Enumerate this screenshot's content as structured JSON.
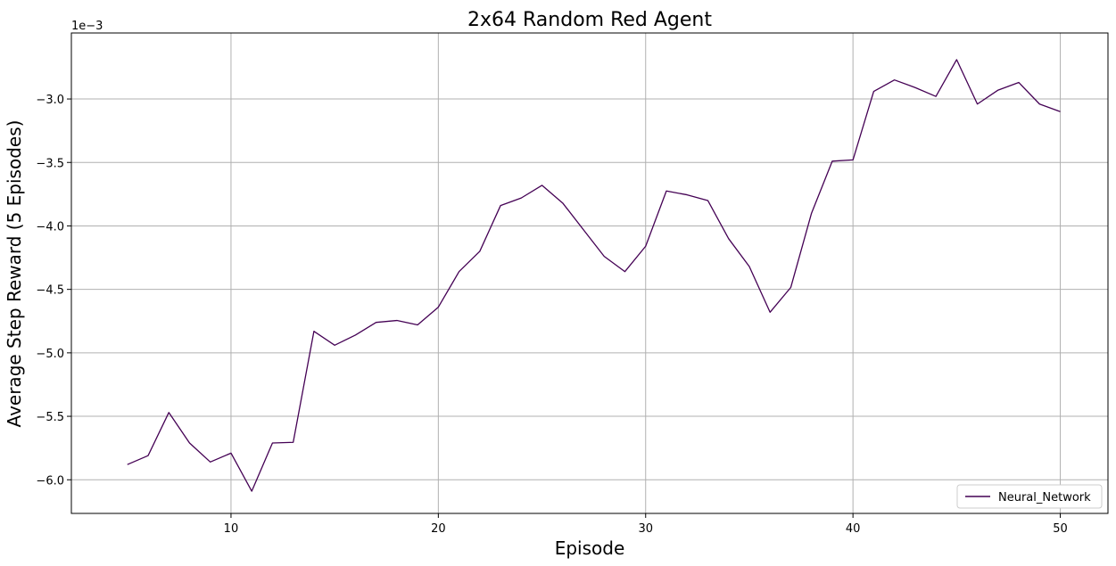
{
  "chart_data": {
    "type": "line",
    "title": "2x64 Random Red Agent",
    "xlabel": "Episode",
    "ylabel": "Average Step Reward (5 Episodes)",
    "y_offset_label": "1e−3",
    "xlim": [
      2.3,
      52.3
    ],
    "ylim": [
      -6.265,
      -2.48
    ],
    "xticks": [
      10,
      20,
      30,
      40,
      50
    ],
    "yticks": [
      -6.0,
      -5.5,
      -5.0,
      -4.5,
      -4.0,
      -3.5,
      -3.0
    ],
    "xtick_labels": [
      "10",
      "20",
      "30",
      "40",
      "50"
    ],
    "ytick_labels": [
      "−6.0",
      "−5.5",
      "−5.0",
      "−4.5",
      "−4.0",
      "−3.5",
      "−3.0"
    ],
    "grid": true,
    "legend_position": "lower-right",
    "series": [
      {
        "name": "Neural_Network",
        "color": "#440154",
        "x": [
          5,
          6,
          7,
          8,
          9,
          10,
          11,
          12,
          13,
          14,
          15,
          16,
          17,
          18,
          19,
          20,
          21,
          22,
          23,
          24,
          25,
          26,
          27,
          28,
          29,
          30,
          31,
          32,
          33,
          34,
          35,
          36,
          37,
          38,
          39,
          40,
          41,
          42,
          43,
          44,
          45,
          46,
          47,
          48,
          49,
          50
        ],
        "y": [
          -5.88,
          -5.81,
          -5.47,
          -5.71,
          -5.86,
          -5.79,
          -6.09,
          -5.71,
          -5.705,
          -4.83,
          -4.94,
          -4.86,
          -4.76,
          -4.745,
          -4.78,
          -4.64,
          -4.36,
          -4.2,
          -3.84,
          -3.78,
          -3.68,
          -3.82,
          -4.03,
          -4.24,
          -4.36,
          -4.16,
          -3.725,
          -3.755,
          -3.8,
          -4.1,
          -4.32,
          -4.68,
          -4.485,
          -3.9,
          -3.49,
          -3.48,
          -2.94,
          -2.85,
          -2.91,
          -2.98,
          -2.69,
          -3.04,
          -2.93,
          -2.87,
          -3.04,
          -3.1
        ]
      }
    ]
  }
}
